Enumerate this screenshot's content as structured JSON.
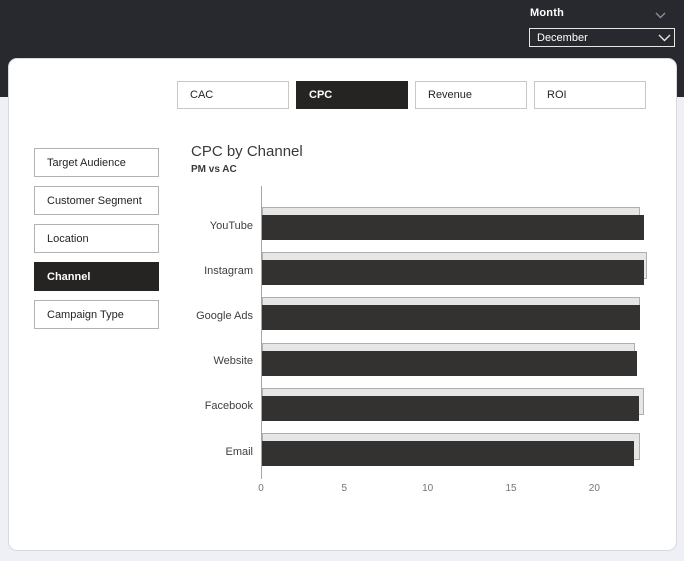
{
  "header": {
    "filter_label": "Month",
    "month_selector": {
      "selected": "December"
    },
    "pane_collapse_icon": "chevron-down-icon"
  },
  "tabs": [
    {
      "label": "CAC",
      "active": false
    },
    {
      "label": "CPC",
      "active": true
    },
    {
      "label": "Revenue",
      "active": false
    },
    {
      "label": "ROI",
      "active": false
    }
  ],
  "sidebar": {
    "items": [
      {
        "label": "Target Audience",
        "active": false
      },
      {
        "label": "Customer Segment",
        "active": false
      },
      {
        "label": "Location",
        "active": false
      },
      {
        "label": "Channel",
        "active": true
      },
      {
        "label": "Campaign Type",
        "active": false
      }
    ]
  },
  "chart_data": {
    "type": "bar",
    "orientation": "horizontal",
    "title": "CPC by Channel",
    "subtitle": "PM vs AC",
    "categories": [
      "YouTube",
      "Instagram",
      "Google Ads",
      "Website",
      "Facebook",
      "Email"
    ],
    "series": [
      {
        "name": "PM",
        "color": "#e6e6e6",
        "values": [
          22.7,
          23.1,
          22.7,
          22.4,
          22.9,
          22.7
        ]
      },
      {
        "name": "AC",
        "color": "#333231",
        "values": [
          22.9,
          22.9,
          22.7,
          22.5,
          22.6,
          22.3
        ]
      }
    ],
    "x_ticks": [
      0,
      5,
      10,
      15,
      20
    ],
    "xlim": [
      0,
      24
    ],
    "grid": false,
    "legend": "none"
  },
  "colors": {
    "header_bg": "#27292f",
    "accent_dark": "#252423",
    "bar_dark": "#333231",
    "bar_light_fill": "#e6e6e6",
    "bar_light_border": "#b0afae",
    "card_bg": "#ffffff",
    "page_bg": "#eef0f6"
  }
}
